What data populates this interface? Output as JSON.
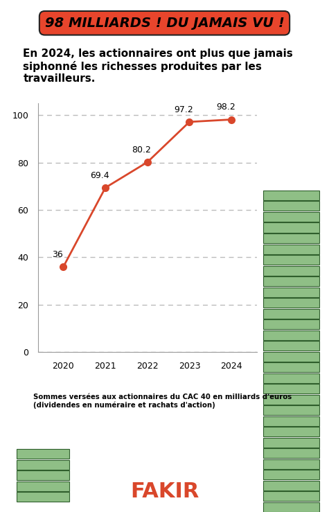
{
  "chart_data": {
    "type": "line",
    "title": "98 MILLIARDS ! DU JAMAIS VU !",
    "subtitle": "En 2024, les actionnaires ont plus que jamais siphonné les richesses produites par les travailleurs.",
    "xlabel": "Sommes versées aux actionnaires du CAC 40 en milliards d'euros (dividendes en numéraire et rachats d'action)",
    "annotations": [
      "FAKIR"
    ],
    "categories": [
      "2020",
      "2021",
      "2022",
      "2023",
      "2024"
    ],
    "values": [
      36,
      69.4,
      80.2,
      97.2,
      98.2
    ],
    "color": "#d9472b",
    "marker": "o",
    "line_style": "solid",
    "ylim": [
      0,
      105
    ],
    "yticks": [
      0,
      20,
      40,
      60,
      80,
      100
    ],
    "grid": true,
    "data_labels": true
  }
}
